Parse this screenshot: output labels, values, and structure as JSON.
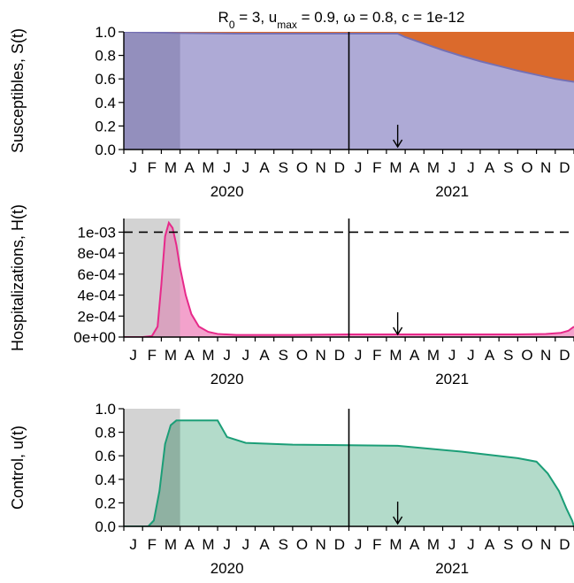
{
  "title": "R₀ = 3, uₘₐₓ = 0.9, ω = 0.8, c = 1e-12",
  "title_parts": {
    "r_base": "R",
    "r_sub": "0",
    "r_rest": " = 3, u",
    "u_sub": "max",
    "u_rest": " = 0.9, ω = 0.8, c = 1e-12"
  },
  "months": [
    "J",
    "F",
    "M",
    "A",
    "M",
    "J",
    "J",
    "A",
    "S",
    "O",
    "N",
    "D",
    "J",
    "F",
    "M",
    "A",
    "M",
    "J",
    "J",
    "A",
    "S",
    "O",
    "N",
    "D"
  ],
  "years": [
    "2020",
    "2021"
  ],
  "colors": {
    "susceptible": "#aeaad6",
    "susceptible_line": "#7570b3",
    "susceptible_shade": "#938fbd",
    "vaccinated": "#d95f02",
    "vaccinated_fill": "#db6a2c",
    "hosp_line": "#e7298a",
    "hosp_fill": "#f3a2cc",
    "hosp_shade": "#d9a3bf",
    "control_line": "#1b9e77",
    "control_fill": "#b3dbca",
    "control_shade": "#8fb1a2",
    "grey_shade": "#d3d3d3"
  },
  "chart_data": [
    {
      "type": "area",
      "name": "susceptibles",
      "ylabel": "Susceptibles, S(t)",
      "x_unit": "months since Jan 2020",
      "xlim": [
        0,
        24
      ],
      "ylim": [
        0,
        1
      ],
      "yticks": [
        "0.0",
        "0.2",
        "0.4",
        "0.6",
        "0.8",
        "1.0"
      ],
      "ytick_values": [
        0,
        0.2,
        0.4,
        0.6,
        0.8,
        1.0
      ],
      "shaded_until": 3,
      "year_divider": 12,
      "arrow_at": 14.6,
      "x": [
        0,
        3,
        6,
        12,
        14.6,
        15,
        16,
        17,
        18,
        19,
        20,
        21,
        22,
        23,
        24
      ],
      "values": [
        1.0,
        0.99,
        0.985,
        0.985,
        0.985,
        0.955,
        0.9,
        0.845,
        0.795,
        0.75,
        0.71,
        0.67,
        0.635,
        0.6,
        0.575
      ]
    },
    {
      "type": "area",
      "name": "hospitalizations",
      "ylabel": "Hospitalizations, H(t)",
      "x_unit": "months since Jan 2020",
      "xlim": [
        0,
        24
      ],
      "ylim": [
        0,
        0.00113
      ],
      "yticks": [
        "0e+00",
        "2e-04",
        "4e-04",
        "6e-04",
        "8e-04",
        "1e-03"
      ],
      "ytick_values": [
        0,
        0.0002,
        0.0004,
        0.0006,
        0.0008,
        0.001
      ],
      "reference_line": 0.001,
      "shaded_until": 3,
      "year_divider": 12,
      "arrow_at": 14.6,
      "x": [
        0,
        1,
        1.5,
        1.8,
        2.0,
        2.2,
        2.4,
        2.6,
        2.8,
        3.0,
        3.3,
        3.6,
        4.0,
        4.5,
        5.0,
        6,
        9,
        12,
        15,
        18,
        21,
        22.5,
        23.3,
        23.7,
        24
      ],
      "values": [
        0,
        0,
        1e-05,
        0.0001,
        0.0005,
        0.00096,
        0.00109,
        0.00104,
        0.00088,
        0.00066,
        0.0004,
        0.00022,
        0.0001,
        5e-05,
        3e-05,
        2e-05,
        2e-05,
        2.5e-05,
        2.5e-05,
        2.5e-05,
        2.5e-05,
        3e-05,
        4e-05,
        6e-05,
        0.0001
      ]
    },
    {
      "type": "area",
      "name": "control",
      "ylabel": "Control, u(t)",
      "x_unit": "months since Jan 2020",
      "xlim": [
        0,
        24
      ],
      "ylim": [
        0,
        1
      ],
      "yticks": [
        "0.0",
        "0.2",
        "0.4",
        "0.6",
        "0.8",
        "1.0"
      ],
      "ytick_values": [
        0,
        0.2,
        0.4,
        0.6,
        0.8,
        1.0
      ],
      "shaded_until": 3,
      "year_divider": 12,
      "arrow_at": 14.6,
      "x": [
        0,
        1.3,
        1.6,
        1.9,
        2.2,
        2.5,
        2.8,
        3.0,
        4.0,
        5.0,
        5.5,
        6.5,
        9,
        12,
        14.6,
        18,
        21,
        22.0,
        22.6,
        23.2,
        23.6,
        23.9,
        24
      ],
      "values": [
        0,
        0,
        0.05,
        0.3,
        0.7,
        0.86,
        0.9,
        0.9,
        0.9,
        0.9,
        0.76,
        0.71,
        0.695,
        0.69,
        0.685,
        0.635,
        0.58,
        0.55,
        0.45,
        0.3,
        0.15,
        0.05,
        0
      ]
    }
  ]
}
